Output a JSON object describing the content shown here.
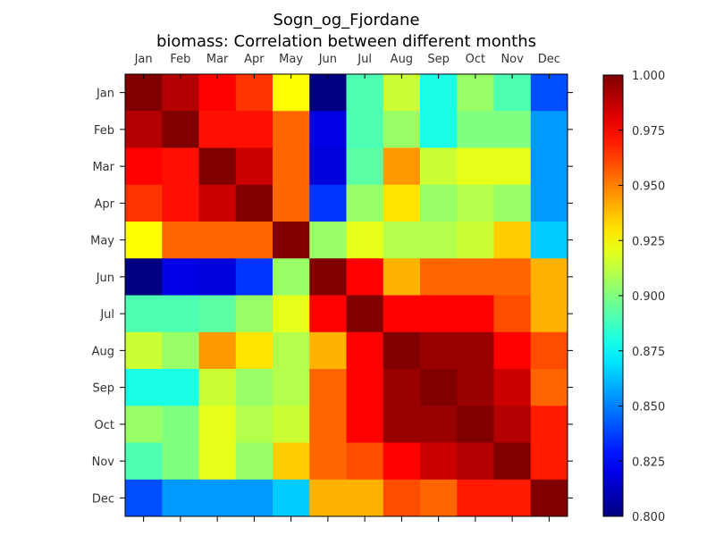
{
  "title_line1": "Sogn_og_Fjordane",
  "title_line2": "biomass: Correlation between different months",
  "chart_data": {
    "type": "heatmap",
    "title": "Sogn_og_Fjordane\nbiomass: Correlation between different months",
    "x_labels": [
      "Jan",
      "Feb",
      "Mar",
      "Apr",
      "May",
      "Jun",
      "Jul",
      "Aug",
      "Sep",
      "Oct",
      "Nov",
      "Dec"
    ],
    "y_labels": [
      "Jan",
      "Feb",
      "Mar",
      "Apr",
      "May",
      "Jun",
      "Jul",
      "Aug",
      "Sep",
      "Oct",
      "Nov",
      "Dec"
    ],
    "colormap": "jet",
    "vmin": 0.8,
    "vmax": 1.0,
    "colorbar_ticks": [
      "0.800",
      "0.825",
      "0.850",
      "0.875",
      "0.900",
      "0.925",
      "0.950",
      "0.975",
      "1.000"
    ],
    "values": [
      [
        1.0,
        0.99,
        0.975,
        0.965,
        0.925,
        0.8,
        0.89,
        0.915,
        0.88,
        0.905,
        0.89,
        0.84
      ],
      [
        0.99,
        1.0,
        0.972,
        0.972,
        0.955,
        0.82,
        0.89,
        0.905,
        0.88,
        0.9,
        0.9,
        0.855
      ],
      [
        0.975,
        0.972,
        1.0,
        0.985,
        0.955,
        0.818,
        0.893,
        0.945,
        0.915,
        0.92,
        0.92,
        0.855
      ],
      [
        0.965,
        0.972,
        0.985,
        1.0,
        0.955,
        0.835,
        0.905,
        0.93,
        0.905,
        0.91,
        0.905,
        0.855
      ],
      [
        0.925,
        0.955,
        0.955,
        0.955,
        1.0,
        0.905,
        0.92,
        0.91,
        0.91,
        0.915,
        0.935,
        0.865
      ],
      [
        0.8,
        0.82,
        0.818,
        0.835,
        0.905,
        1.0,
        0.975,
        0.94,
        0.955,
        0.955,
        0.955,
        0.94
      ],
      [
        0.89,
        0.89,
        0.893,
        0.905,
        0.92,
        0.975,
        1.0,
        0.975,
        0.975,
        0.975,
        0.96,
        0.94
      ],
      [
        0.915,
        0.905,
        0.945,
        0.93,
        0.91,
        0.94,
        0.975,
        1.0,
        0.995,
        0.995,
        0.975,
        0.96
      ],
      [
        0.88,
        0.88,
        0.915,
        0.905,
        0.91,
        0.955,
        0.975,
        0.995,
        1.0,
        0.995,
        0.985,
        0.955
      ],
      [
        0.905,
        0.9,
        0.92,
        0.91,
        0.915,
        0.955,
        0.975,
        0.995,
        0.995,
        1.0,
        0.99,
        0.97
      ],
      [
        0.89,
        0.9,
        0.92,
        0.905,
        0.935,
        0.955,
        0.96,
        0.975,
        0.985,
        0.99,
        1.0,
        0.97
      ],
      [
        0.84,
        0.855,
        0.855,
        0.855,
        0.865,
        0.94,
        0.94,
        0.96,
        0.955,
        0.97,
        0.97,
        1.0
      ]
    ]
  }
}
